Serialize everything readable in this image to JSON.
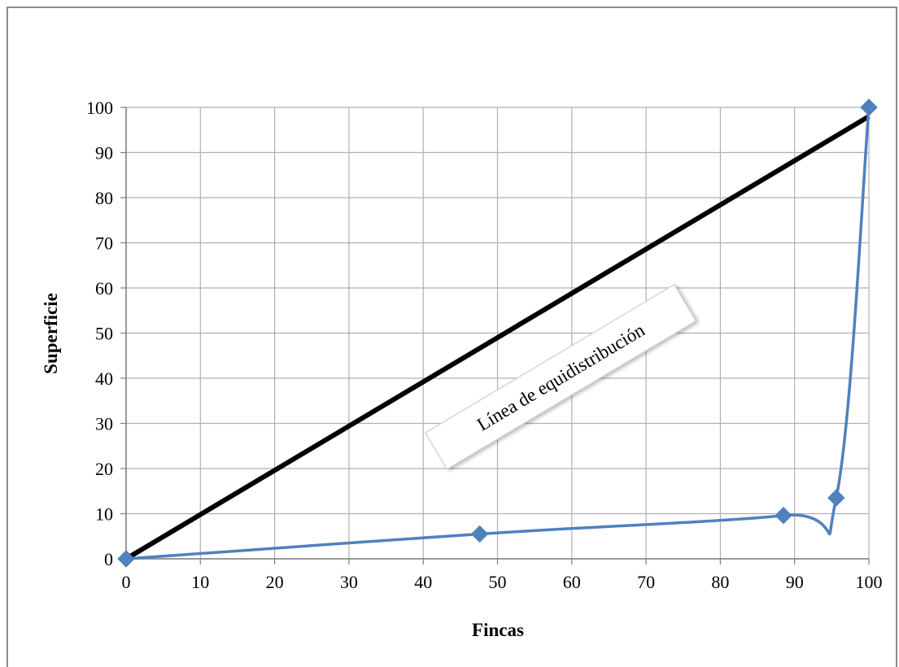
{
  "chart_data": {
    "type": "line",
    "title": "",
    "xlabel": "Fincas",
    "ylabel": "Superficie",
    "xlim": [
      0,
      100
    ],
    "ylim": [
      0,
      100
    ],
    "x_ticks": [
      "0",
      "10",
      "20",
      "30",
      "40",
      "50",
      "60",
      "70",
      "80",
      "90",
      "100"
    ],
    "y_ticks": [
      "0",
      "10",
      "20",
      "30",
      "40",
      "50",
      "60",
      "70",
      "80",
      "90",
      "100"
    ],
    "grid": true,
    "legend": "none",
    "series": [
      {
        "color": "#4f81bd",
        "marker": "diamond",
        "points": [
          {
            "x": 0,
            "y": 0
          },
          {
            "x": 47.6,
            "y": 5.5
          },
          {
            "x": 88.5,
            "y": 9.6
          },
          {
            "x": 95.6,
            "y": 13.5
          },
          {
            "x": 100,
            "y": 100
          }
        ]
      },
      {
        "color": "#000000",
        "marker": "none",
        "points": [
          {
            "x": 0,
            "y": 0
          },
          {
            "x": 100,
            "y": 98
          }
        ]
      }
    ],
    "annotations": [
      {
        "text": "Línea de equidistribución"
      }
    ]
  }
}
